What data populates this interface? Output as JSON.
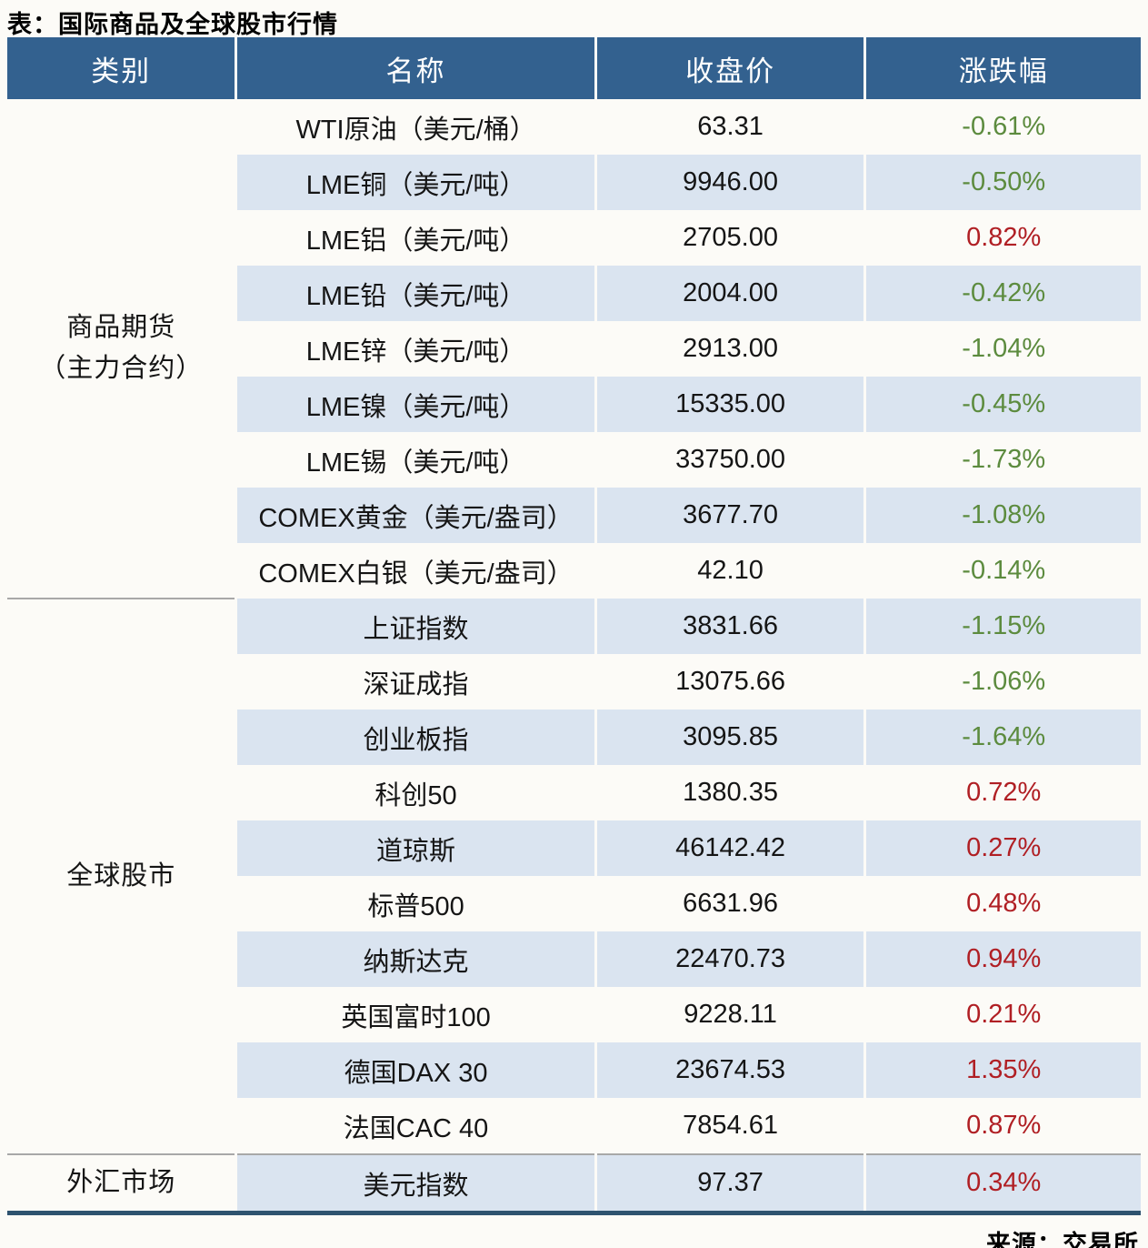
{
  "title": "表：国际商品及全球股市行情",
  "source": "来源：交易所",
  "columns": [
    "类别",
    "名称",
    "收盘价",
    "涨跌幅"
  ],
  "colors": {
    "header_bg": "#33618F",
    "row_alt": "#DAE4F0",
    "up_red": "#B01F24",
    "down_green": "#5C8B3E",
    "bottom_rule": "#2E536F"
  },
  "sections": [
    {
      "category": "商品期货\n（主力合约）",
      "rows": [
        {
          "name": "WTI原油（美元/桶）",
          "close": "63.31",
          "change": "-0.61%",
          "direction": "down"
        },
        {
          "name": "LME铜（美元/吨）",
          "close": "9946.00",
          "change": "-0.50%",
          "direction": "down"
        },
        {
          "name": "LME铝（美元/吨）",
          "close": "2705.00",
          "change": "0.82%",
          "direction": "up"
        },
        {
          "name": "LME铅（美元/吨）",
          "close": "2004.00",
          "change": "-0.42%",
          "direction": "down"
        },
        {
          "name": "LME锌（美元/吨）",
          "close": "2913.00",
          "change": "-1.04%",
          "direction": "down"
        },
        {
          "name": "LME镍（美元/吨）",
          "close": "15335.00",
          "change": "-0.45%",
          "direction": "down"
        },
        {
          "name": "LME锡（美元/吨）",
          "close": "33750.00",
          "change": "-1.73%",
          "direction": "down"
        },
        {
          "name": "COMEX黄金（美元/盎司）",
          "close": "3677.70",
          "change": "-1.08%",
          "direction": "down"
        },
        {
          "name": "COMEX白银（美元/盎司）",
          "close": "42.10",
          "change": "-0.14%",
          "direction": "down"
        }
      ]
    },
    {
      "category": "全球股市",
      "rows": [
        {
          "name": "上证指数",
          "close": "3831.66",
          "change": "-1.15%",
          "direction": "down"
        },
        {
          "name": "深证成指",
          "close": "13075.66",
          "change": "-1.06%",
          "direction": "down"
        },
        {
          "name": "创业板指",
          "close": "3095.85",
          "change": "-1.64%",
          "direction": "down"
        },
        {
          "name": "科创50",
          "close": "1380.35",
          "change": "0.72%",
          "direction": "up"
        },
        {
          "name": "道琼斯",
          "close": "46142.42",
          "change": "0.27%",
          "direction": "up"
        },
        {
          "name": "标普500",
          "close": "6631.96",
          "change": "0.48%",
          "direction": "up"
        },
        {
          "name": "纳斯达克",
          "close": "22470.73",
          "change": "0.94%",
          "direction": "up"
        },
        {
          "name": "英国富时100",
          "close": "9228.11",
          "change": "0.21%",
          "direction": "up"
        },
        {
          "name": "德国DAX 30",
          "close": "23674.53",
          "change": "1.35%",
          "direction": "up"
        },
        {
          "name": "法国CAC 40",
          "close": "7854.61",
          "change": "0.87%",
          "direction": "up"
        }
      ]
    },
    {
      "category": "外汇市场",
      "rows": [
        {
          "name": "美元指数",
          "close": "97.37",
          "change": "0.34%",
          "direction": "up"
        }
      ]
    }
  ]
}
